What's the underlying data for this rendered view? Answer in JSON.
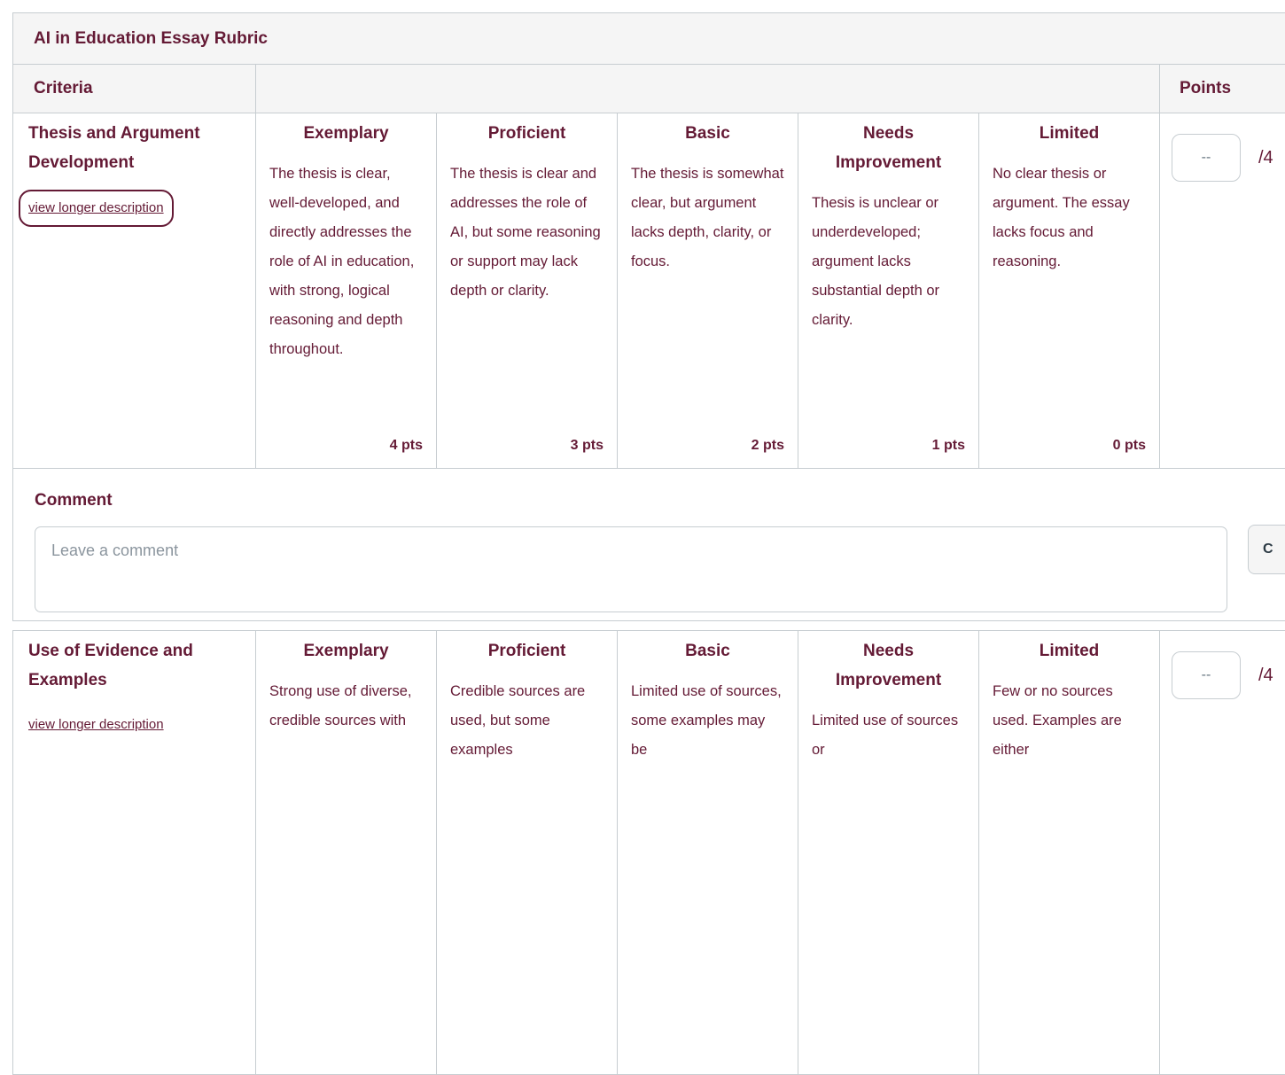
{
  "rubric": {
    "title": "AI in Education Essay Rubric",
    "header": {
      "criteria_label": "Criteria",
      "points_label": "Points"
    },
    "criteria": [
      {
        "name": "Thesis and Argument Development",
        "long_description_link": "view longer description",
        "ratings": [
          {
            "title": "Exemplary",
            "description": "The thesis is clear, well-developed, and directly addresses the role of AI in education, with strong, logical reasoning and depth throughout.",
            "points": "4 pts"
          },
          {
            "title": "Proficient",
            "description": "The thesis is clear and addresses the role of AI, but some reasoning or support may lack depth or clarity.",
            "points": "3 pts"
          },
          {
            "title": "Basic",
            "description": "The thesis is somewhat clear, but argument lacks depth, clarity, or focus.",
            "points": "2 pts"
          },
          {
            "title": "Needs Improvement",
            "description": "Thesis is unclear or underdeveloped; argument lacks substantial depth or clarity.",
            "points": "1 pts"
          },
          {
            "title": "Limited",
            "description": "No clear thesis or argument. The essay lacks focus and reasoning.",
            "points": "0 pts"
          }
        ],
        "score": {
          "value": "--",
          "total": "/4"
        }
      },
      {
        "name": "Use of Evidence and Examples",
        "long_description_link": "view longer description",
        "ratings": [
          {
            "title": "Exemplary",
            "description": "Strong use of diverse, credible sources with"
          },
          {
            "title": "Proficient",
            "description": "Credible sources are used, but some examples"
          },
          {
            "title": "Basic",
            "description": "Limited use of sources, some examples may be"
          },
          {
            "title": "Needs Improvement",
            "description": "Limited use of sources or"
          },
          {
            "title": "Limited",
            "description": "Few or no sources used. Examples are either"
          }
        ],
        "score": {
          "value": "--",
          "total": "/4"
        }
      }
    ],
    "comment": {
      "label": "Comment",
      "placeholder": "Leave a comment",
      "clear_button_visible": "C"
    }
  },
  "colors": {
    "brand_maroon": "#641A35",
    "border_gray": "#C7CDD1",
    "header_bg": "#F5F5F5",
    "placeholder_gray": "#8B959E",
    "score_dash_gray": "#66757F"
  }
}
